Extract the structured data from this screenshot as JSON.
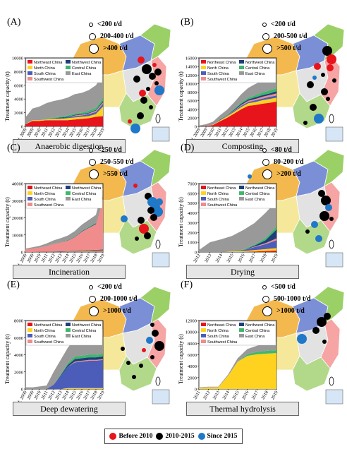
{
  "colors": {
    "northeast": "#e8141c",
    "north": "#ffd21f",
    "south": "#4b5db8",
    "southwest": "#f08c8c",
    "northwest": "#1f3f7a",
    "central": "#3cb86a",
    "east": "#999999",
    "before2010": "#e8141c",
    "y2010_2015": "#000000",
    "since2015": "#1f78c8"
  },
  "legend_labels": {
    "northeast": "Northeast China",
    "north": "North China",
    "south": "South China",
    "southwest": "Southwest China",
    "northwest": "Northwest China",
    "central": "Central China",
    "east": "East China"
  },
  "bottom_legend": [
    "Before 2010",
    "2010-2015",
    "Since 2015"
  ],
  "chart_data": [
    {
      "type": "area",
      "panel": "(A)",
      "title": "Anaerobic digestion",
      "ylabel": "Treatment capacity (t)",
      "ylim": [
        0,
        10000
      ],
      "yticks": [
        "0",
        "2000",
        "4000",
        "6000",
        "8000",
        "10000"
      ],
      "x": [
        "Bef. 2009",
        "2009",
        "2010",
        "2011",
        "2012",
        "2013",
        "2014",
        "2015",
        "2016",
        "2017",
        "2018",
        "2019"
      ],
      "size_legend": [
        "<200 t/d",
        "200-400 t/d",
        ">400 t/d"
      ],
      "series": [
        {
          "name": "Northeast China",
          "key": "northeast",
          "values": [
            300,
            800,
            800,
            900,
            900,
            900,
            900,
            1000,
            1100,
            1200,
            1400,
            1500
          ]
        },
        {
          "name": "North China",
          "key": "north",
          "values": [
            0,
            100,
            100,
            100,
            200,
            200,
            300,
            300,
            300,
            300,
            400,
            1400
          ]
        },
        {
          "name": "South China",
          "key": "south",
          "values": [
            0,
            0,
            0,
            0,
            100,
            100,
            100,
            200,
            200,
            300,
            300,
            400
          ]
        },
        {
          "name": "Southwest China",
          "key": "southwest",
          "values": [
            0,
            0,
            0,
            0,
            0,
            0,
            0,
            100,
            100,
            100,
            200,
            200
          ]
        },
        {
          "name": "Northwest China",
          "key": "northwest",
          "values": [
            0,
            0,
            0,
            0,
            0,
            100,
            100,
            100,
            100,
            100,
            100,
            200
          ]
        },
        {
          "name": "Central China",
          "key": "central",
          "values": [
            0,
            0,
            0,
            100,
            100,
            100,
            200,
            200,
            200,
            300,
            300,
            400
          ]
        },
        {
          "name": "East China",
          "key": "east",
          "values": [
            1000,
            1700,
            2000,
            2300,
            2400,
            2500,
            2600,
            2800,
            2900,
            3000,
            3300,
            3500
          ]
        }
      ]
    },
    {
      "type": "area",
      "panel": "(B)",
      "title": "Composting",
      "ylabel": "Treatment capacity (t)",
      "ylim": [
        0,
        16000
      ],
      "yticks": [
        "0",
        "2000",
        "4000",
        "6000",
        "8000",
        "10000",
        "12000",
        "14000",
        "16000"
      ],
      "x": [
        "Bef. 2009",
        "2009",
        "2010",
        "2011",
        "2012",
        "2013",
        "2014",
        "2015",
        "2016",
        "2017",
        "2018",
        "2019"
      ],
      "size_legend": [
        "<200 t/d",
        "200-500 t/d",
        ">500 t/d"
      ],
      "series": [
        {
          "name": "Northeast China",
          "key": "northeast",
          "values": [
            0,
            100,
            300,
            1200,
            2000,
            3000,
            4000,
            4800,
            5000,
            5300,
            5500,
            5800
          ]
        },
        {
          "name": "North China",
          "key": "north",
          "values": [
            0,
            0,
            100,
            200,
            300,
            400,
            500,
            600,
            700,
            800,
            900,
            900
          ]
        },
        {
          "name": "South China",
          "key": "south",
          "values": [
            0,
            0,
            0,
            100,
            100,
            200,
            300,
            300,
            400,
            400,
            500,
            500
          ]
        },
        {
          "name": "Southwest China",
          "key": "southwest",
          "values": [
            0,
            0,
            0,
            0,
            100,
            100,
            200,
            300,
            300,
            400,
            400,
            500
          ]
        },
        {
          "name": "Northwest China",
          "key": "northwest",
          "values": [
            0,
            0,
            0,
            100,
            100,
            200,
            300,
            300,
            400,
            400,
            400,
            500
          ]
        },
        {
          "name": "Central China",
          "key": "central",
          "values": [
            0,
            0,
            0,
            100,
            100,
            200,
            300,
            400,
            500,
            600,
            700,
            700
          ]
        },
        {
          "name": "East China",
          "key": "east",
          "values": [
            200,
            400,
            700,
            900,
            1200,
            1500,
            1900,
            2300,
            2600,
            2800,
            3000,
            3100
          ]
        }
      ]
    },
    {
      "type": "area",
      "panel": "(C)",
      "title": "Incineration",
      "ylabel": "Treatment capacity (t)",
      "ylim": [
        0,
        40000
      ],
      "yticks": [
        "0",
        "10000",
        "20000",
        "30000",
        "40000"
      ],
      "x": [
        "Bef. 2009",
        "2009",
        "2010",
        "2011",
        "2012",
        "2013",
        "2014",
        "2015",
        "2016",
        "2017",
        "2018",
        "2019"
      ],
      "size_legend": [
        "<250 t/d",
        "250-550 t/d",
        ">550 t/d"
      ],
      "series": [
        {
          "name": "Northeast China",
          "key": "northeast",
          "values": [
            0,
            0,
            0,
            0,
            0,
            0,
            0,
            100,
            100,
            100,
            200,
            200
          ]
        },
        {
          "name": "North China",
          "key": "north",
          "values": [
            0,
            0,
            0,
            100,
            100,
            100,
            200,
            200,
            300,
            400,
            400,
            500
          ]
        },
        {
          "name": "South China",
          "key": "south",
          "values": [
            0,
            0,
            100,
            100,
            200,
            300,
            300,
            400,
            500,
            600,
            700,
            800
          ]
        },
        {
          "name": "Southwest China",
          "key": "southwest",
          "values": [
            1500,
            2000,
            2500,
            3200,
            4500,
            5200,
            6200,
            8000,
            11000,
            13000,
            15000,
            30000
          ]
        },
        {
          "name": "Northwest China",
          "key": "northwest",
          "values": [
            0,
            0,
            0,
            0,
            100,
            100,
            200,
            200,
            300,
            300,
            400,
            500
          ]
        },
        {
          "name": "Central China",
          "key": "central",
          "values": [
            0,
            0,
            0,
            100,
            100,
            200,
            200,
            300,
            300,
            400,
            500,
            600
          ]
        },
        {
          "name": "East China",
          "key": "east",
          "values": [
            500,
            800,
            1000,
            1500,
            1800,
            2200,
            2500,
            3000,
            3500,
            4000,
            4500,
            5000
          ]
        }
      ]
    },
    {
      "type": "area",
      "panel": "(D)",
      "title": "Drying",
      "ylabel": "Treatment capacity (t)",
      "ylim": [
        0,
        7000
      ],
      "yticks": [
        "0",
        "1000",
        "2000",
        "3000",
        "4000",
        "5000",
        "6000",
        "7000"
      ],
      "x": [
        "2012",
        "2013",
        "2014",
        "2015",
        "2016",
        "2017",
        "2018",
        "2019"
      ],
      "size_legend": [
        "<80 t/d",
        "80-200 t/d",
        ">200 t/d"
      ],
      "series": [
        {
          "name": "Northeast China",
          "key": "northeast",
          "values": [
            0,
            0,
            0,
            0,
            0,
            50,
            100,
            150
          ]
        },
        {
          "name": "North China",
          "key": "north",
          "values": [
            0,
            0,
            0,
            50,
            100,
            150,
            200,
            250
          ]
        },
        {
          "name": "South China",
          "key": "south",
          "values": [
            0,
            0,
            0,
            0,
            100,
            300,
            500,
            800
          ]
        },
        {
          "name": "Southwest China",
          "key": "southwest",
          "values": [
            0,
            0,
            0,
            0,
            0,
            50,
            100,
            200
          ]
        },
        {
          "name": "Northwest China",
          "key": "northwest",
          "values": [
            0,
            0,
            0,
            0,
            0,
            100,
            300,
            900
          ]
        },
        {
          "name": "Central China",
          "key": "central",
          "values": [
            0,
            0,
            0,
            0,
            50,
            100,
            200,
            300
          ]
        },
        {
          "name": "East China",
          "key": "east",
          "values": [
            200,
            1000,
            1300,
            1600,
            2000,
            2200,
            2600,
            2600
          ]
        }
      ]
    },
    {
      "type": "area",
      "panel": "(E)",
      "title": "Deep dewatering",
      "ylabel": "Treatment capacity (t)",
      "ylim": [
        0,
        8000
      ],
      "yticks": [
        "0",
        "2000",
        "4000",
        "6000",
        "8000"
      ],
      "x": [
        "Bef. 2009",
        "2009",
        "2010",
        "2011",
        "2012",
        "2013",
        "2014",
        "2015",
        "2016",
        "2017",
        "2018",
        "2019"
      ],
      "size_legend": [
        "<200 t/d",
        "200-1000 t/d",
        ">1000 t/d"
      ],
      "series": [
        {
          "name": "Northeast China",
          "key": "northeast",
          "values": [
            0,
            0,
            0,
            0,
            0,
            0,
            0,
            0,
            0,
            0,
            0,
            0
          ]
        },
        {
          "name": "North China",
          "key": "north",
          "values": [
            0,
            0,
            0,
            0,
            0,
            0,
            100,
            100,
            100,
            100,
            100,
            100
          ]
        },
        {
          "name": "South China",
          "key": "south",
          "values": [
            0,
            0,
            0,
            0,
            500,
            1500,
            2500,
            3000,
            3100,
            3200,
            3200,
            3300
          ]
        },
        {
          "name": "Southwest China",
          "key": "southwest",
          "values": [
            0,
            0,
            0,
            0,
            0,
            0,
            0,
            100,
            100,
            100,
            100,
            100
          ]
        },
        {
          "name": "Northwest China",
          "key": "northwest",
          "values": [
            0,
            0,
            0,
            0,
            0,
            100,
            200,
            300,
            300,
            300,
            300,
            300
          ]
        },
        {
          "name": "Central China",
          "key": "central",
          "values": [
            0,
            0,
            0,
            0,
            0,
            100,
            200,
            300,
            300,
            300,
            300,
            300
          ]
        },
        {
          "name": "East China",
          "key": "east",
          "values": [
            200,
            200,
            300,
            400,
            1500,
            1700,
            1800,
            2100,
            2400,
            2700,
            2800,
            2900
          ]
        }
      ]
    },
    {
      "type": "area",
      "panel": "(F)",
      "title": "Thermal hydrolysis",
      "ylabel": "Treatment capacity (t)",
      "ylim": [
        0,
        12000
      ],
      "yticks": [
        "0",
        "2000",
        "4000",
        "6000",
        "8000",
        "10000",
        "12000"
      ],
      "x": [
        "2011",
        "2012",
        "2013",
        "2014",
        "2015",
        "2016",
        "2017",
        "2018",
        "2019"
      ],
      "size_legend": [
        "<500 t/d",
        "500-1000 t/d",
        ">1000 t/d"
      ],
      "series": [
        {
          "name": "Northeast China",
          "key": "northeast",
          "values": [
            0,
            0,
            0,
            0,
            0,
            0,
            0,
            0,
            0
          ]
        },
        {
          "name": "North China",
          "key": "north",
          "values": [
            200,
            300,
            300,
            2300,
            4800,
            5800,
            6100,
            6200,
            6300
          ]
        },
        {
          "name": "South China",
          "key": "south",
          "values": [
            0,
            0,
            0,
            0,
            0,
            0,
            0,
            0,
            0
          ]
        },
        {
          "name": "Southwest China",
          "key": "southwest",
          "values": [
            0,
            0,
            0,
            0,
            0,
            0,
            0,
            0,
            0
          ]
        },
        {
          "name": "Northwest China",
          "key": "northwest",
          "values": [
            0,
            0,
            0,
            0,
            0,
            0,
            0,
            0,
            0
          ]
        },
        {
          "name": "Central China",
          "key": "central",
          "values": [
            0,
            0,
            0,
            0,
            0,
            300,
            400,
            500,
            500
          ]
        },
        {
          "name": "East China",
          "key": "east",
          "values": [
            100,
            100,
            100,
            200,
            600,
            900,
            1100,
            1300,
            1500
          ]
        }
      ]
    }
  ]
}
